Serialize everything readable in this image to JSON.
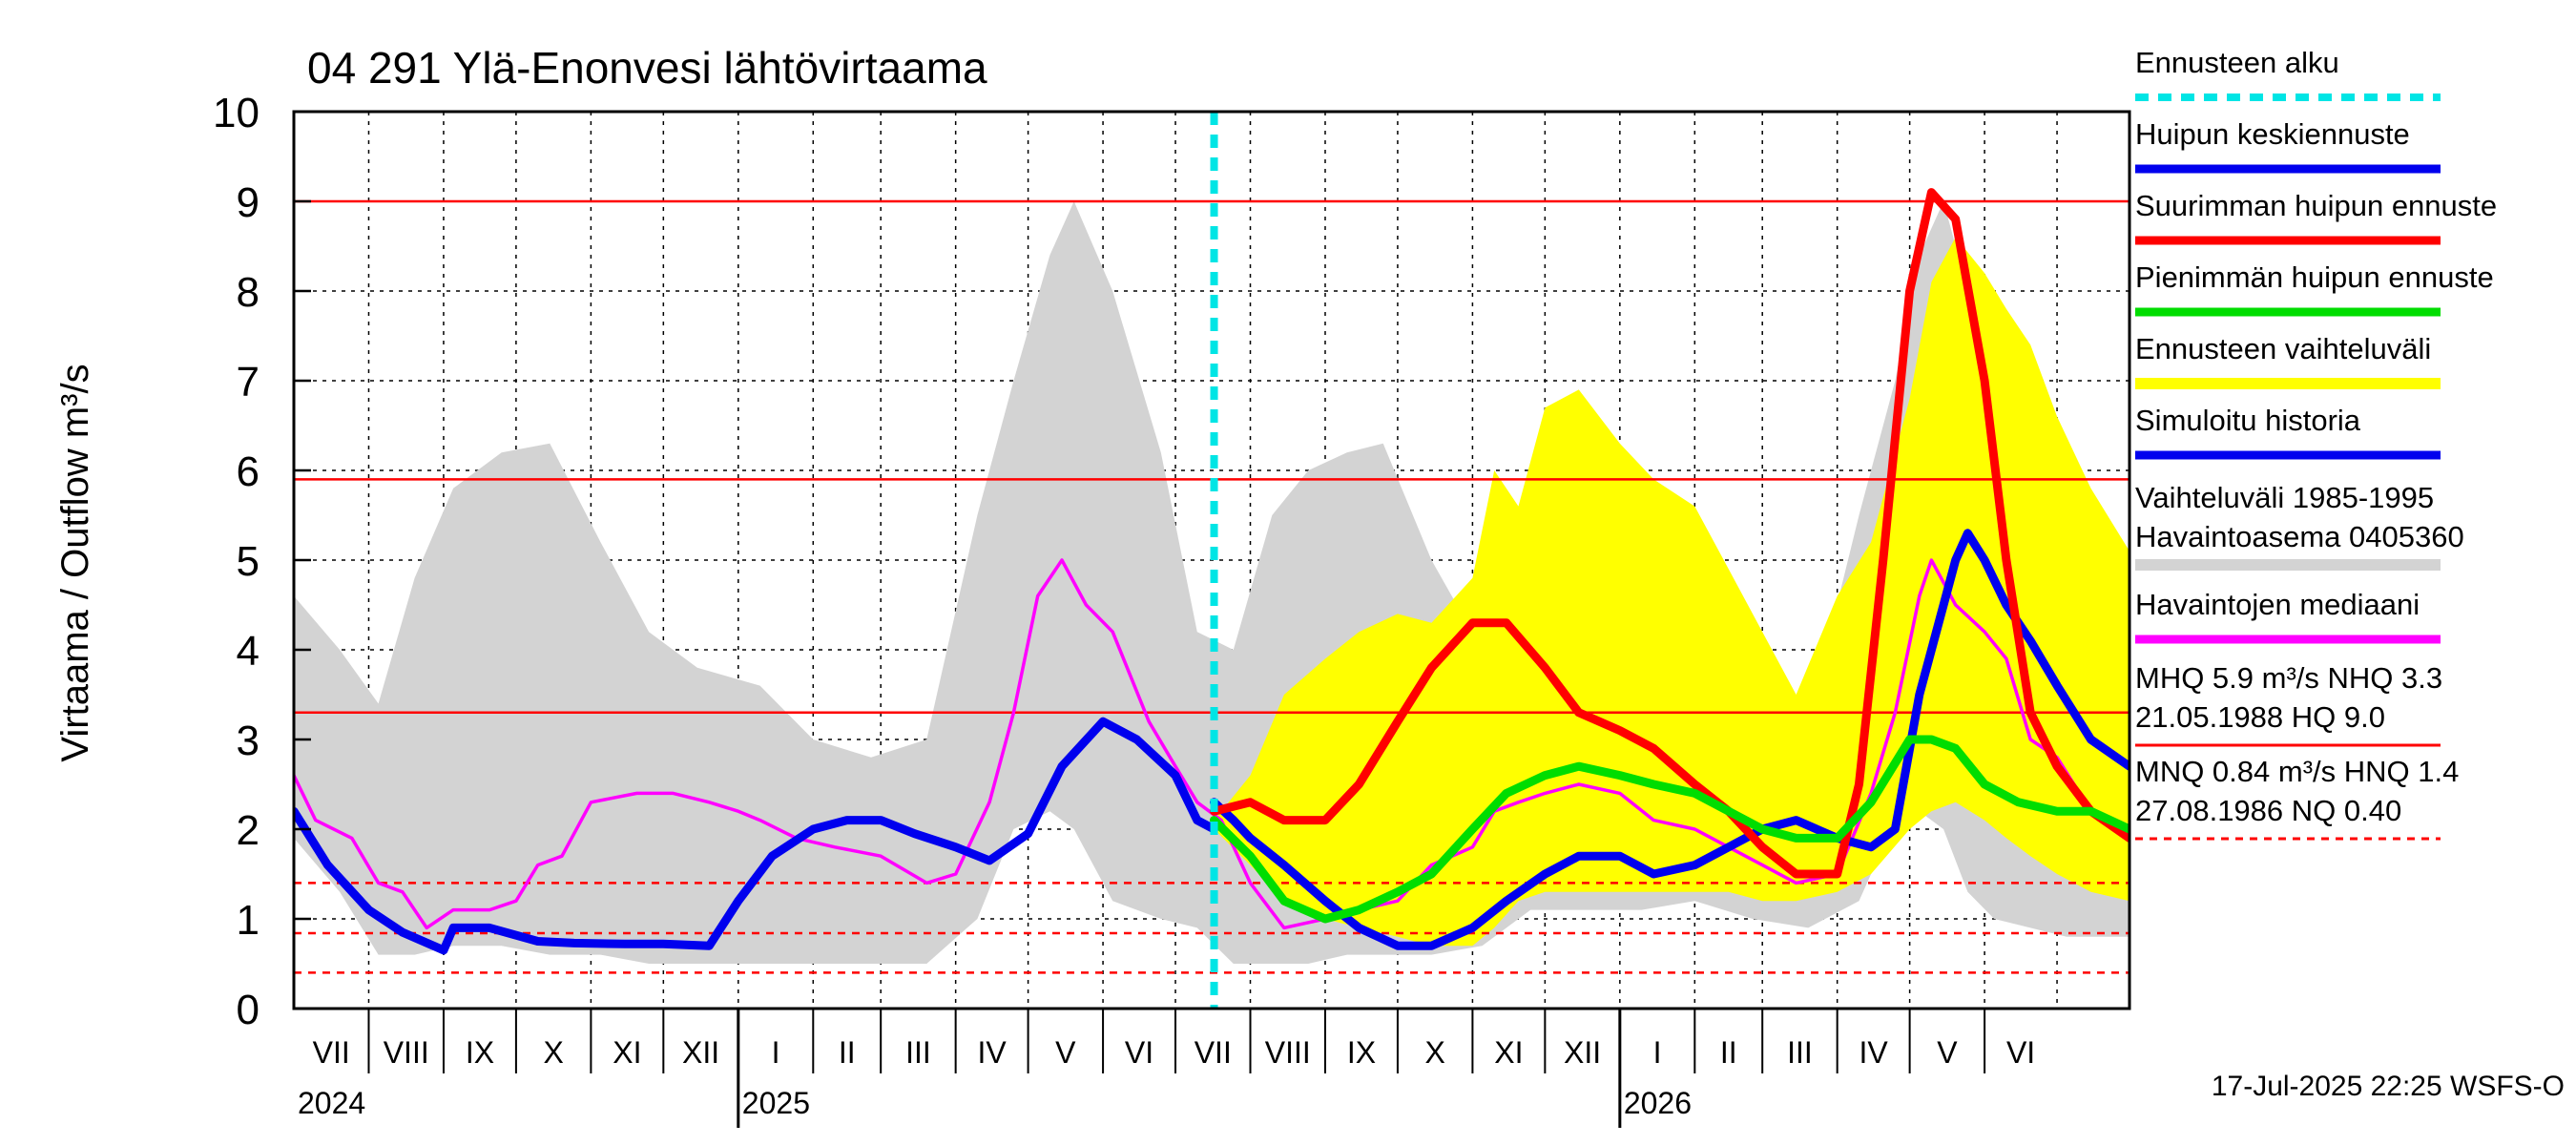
{
  "chart_data": {
    "type": "line",
    "title": "04 291 Ylä-Enonvesi lähtövirtaama",
    "ylabel": "Virtaama / Outflow    m³/s",
    "ylim": [
      0,
      10
    ],
    "y_ticks": [
      "0",
      "1",
      "2",
      "3",
      "4",
      "5",
      "6",
      "7",
      "8",
      "9",
      "10"
    ],
    "x_range": [
      "2024-07-01",
      "2026-07-31"
    ],
    "grid": true,
    "legend_position": "right",
    "month_labels": [
      "VII",
      "VIII",
      "IX",
      "X",
      "XI",
      "XII",
      "I",
      "II",
      "III",
      "IV",
      "V",
      "VI",
      "VII",
      "VIII",
      "IX",
      "X",
      "XI",
      "XII",
      "I",
      "II",
      "III",
      "IV",
      "V",
      "VI"
    ],
    "year_labels": [
      {
        "date": "2024-07-01",
        "label": "2024"
      },
      {
        "date": "2025-01-01",
        "label": "2025"
      },
      {
        "date": "2026-01-01",
        "label": "2026"
      }
    ],
    "forecast_start": "2025-07-17",
    "reference_lines": [
      {
        "name": "HQ",
        "value": 9.0,
        "style": "solid"
      },
      {
        "name": "MHQ",
        "value": 5.9,
        "style": "solid"
      },
      {
        "name": "NHQ",
        "value": 3.3,
        "style": "solid"
      },
      {
        "name": "HNQ",
        "value": 1.4,
        "style": "dashed"
      },
      {
        "name": "MNQ",
        "value": 0.84,
        "style": "dashed"
      },
      {
        "name": "NQ",
        "value": 0.4,
        "style": "dashed"
      }
    ],
    "hist_band": {
      "x": [
        "2024-07-01",
        "2024-07-20",
        "2024-08-05",
        "2024-08-20",
        "2024-09-05",
        "2024-09-25",
        "2024-10-15",
        "2024-11-05",
        "2024-11-25",
        "2024-12-15",
        "2025-01-10",
        "2025-02-01",
        "2025-02-25",
        "2025-03-20",
        "2025-04-10",
        "2025-04-25",
        "2025-05-10",
        "2025-05-20",
        "2025-06-05",
        "2025-06-25",
        "2025-07-10",
        "2025-07-25",
        "2025-08-10",
        "2025-08-25",
        "2025-09-10",
        "2025-09-25",
        "2025-10-15",
        "2025-11-05",
        "2025-11-25",
        "2025-12-15",
        "2026-01-10",
        "2026-02-01",
        "2026-02-25",
        "2026-03-20",
        "2026-04-10",
        "2026-04-25",
        "2026-05-05",
        "2026-05-15",
        "2026-05-25",
        "2026-06-05",
        "2026-06-20",
        "2026-07-05",
        "2026-07-31"
      ],
      "upper": [
        4.6,
        4.0,
        3.4,
        4.8,
        5.8,
        6.2,
        6.3,
        5.2,
        4.2,
        3.8,
        3.6,
        3.0,
        2.8,
        3.0,
        5.5,
        7.0,
        8.4,
        9.0,
        8.0,
        6.2,
        4.2,
        4.0,
        5.5,
        6.0,
        6.2,
        6.3,
        5.0,
        4.0,
        3.9,
        3.5,
        3.4,
        3.0,
        2.8,
        3.2,
        5.5,
        7.0,
        8.4,
        9.0,
        8.0,
        6.2,
        4.2,
        4.0,
        4.3
      ],
      "lower": [
        1.9,
        1.3,
        0.6,
        0.6,
        0.7,
        0.7,
        0.6,
        0.6,
        0.5,
        0.5,
        0.5,
        0.5,
        0.5,
        0.5,
        1.0,
        2.0,
        2.2,
        2.0,
        1.2,
        1.0,
        0.9,
        0.5,
        0.5,
        0.5,
        0.6,
        0.6,
        0.6,
        0.7,
        1.1,
        1.1,
        1.1,
        1.2,
        1.0,
        0.9,
        1.2,
        2.1,
        2.2,
        2.0,
        1.3,
        1.0,
        0.9,
        0.8,
        0.8
      ]
    },
    "forecast_band": {
      "x": [
        "2025-07-17",
        "2025-08-01",
        "2025-08-15",
        "2025-09-01",
        "2025-09-15",
        "2025-10-01",
        "2025-10-15",
        "2025-11-01",
        "2025-11-10",
        "2025-11-20",
        "2025-12-01",
        "2025-12-15",
        "2026-01-01",
        "2026-01-15",
        "2026-02-01",
        "2026-02-15",
        "2026-03-01",
        "2026-03-15",
        "2026-04-01",
        "2026-04-15",
        "2026-05-01",
        "2026-05-10",
        "2026-05-20",
        "2026-06-01",
        "2026-06-10",
        "2026-06-20",
        "2026-07-01",
        "2026-07-15",
        "2026-07-31"
      ],
      "upper": [
        2.1,
        2.6,
        3.5,
        3.9,
        4.2,
        4.4,
        4.3,
        4.8,
        6.0,
        5.6,
        6.7,
        6.9,
        6.3,
        5.9,
        5.6,
        4.9,
        4.2,
        3.5,
        4.6,
        5.2,
        6.8,
        8.1,
        8.6,
        8.2,
        7.8,
        7.4,
        6.6,
        5.8,
        5.1
      ],
      "lower": [
        2.0,
        1.6,
        1.2,
        1.0,
        0.9,
        0.8,
        0.7,
        0.7,
        0.9,
        1.2,
        1.3,
        1.3,
        1.3,
        1.3,
        1.3,
        1.3,
        1.2,
        1.2,
        1.3,
        1.5,
        2.0,
        2.2,
        2.3,
        2.1,
        1.9,
        1.7,
        1.5,
        1.3,
        1.2
      ]
    },
    "series": [
      {
        "name": "Havaintojen mediaani",
        "color": "#ff00ff",
        "x": [
          "2024-07-01",
          "2024-07-10",
          "2024-07-25",
          "2024-08-05",
          "2024-08-15",
          "2024-08-25",
          "2024-09-05",
          "2024-09-20",
          "2024-10-01",
          "2024-10-10",
          "2024-10-20",
          "2024-11-01",
          "2024-11-20",
          "2024-12-05",
          "2024-12-20",
          "2025-01-01",
          "2025-01-10",
          "2025-01-25",
          "2025-02-10",
          "2025-03-01",
          "2025-03-20",
          "2025-04-01",
          "2025-04-15",
          "2025-04-25",
          "2025-05-05",
          "2025-05-15",
          "2025-05-25",
          "2025-06-05",
          "2025-06-20",
          "2025-07-01",
          "2025-07-10",
          "2025-07-20",
          "2025-08-01",
          "2025-08-15",
          "2025-09-01",
          "2025-09-15",
          "2025-10-01",
          "2025-10-15",
          "2025-11-01",
          "2025-11-10",
          "2025-11-20",
          "2025-12-01",
          "2025-12-15",
          "2026-01-01",
          "2026-01-15",
          "2026-02-01",
          "2026-02-15",
          "2026-03-01",
          "2026-03-15",
          "2026-04-01",
          "2026-04-15",
          "2026-04-25",
          "2026-05-05",
          "2026-05-10",
          "2026-05-20",
          "2026-06-01",
          "2026-06-10",
          "2026-06-20",
          "2026-07-01",
          "2026-07-15",
          "2026-07-31"
        ],
        "y": [
          2.6,
          2.1,
          1.9,
          1.4,
          1.3,
          0.9,
          1.1,
          1.1,
          1.2,
          1.6,
          1.7,
          2.3,
          2.4,
          2.4,
          2.3,
          2.2,
          2.1,
          1.9,
          1.8,
          1.7,
          1.4,
          1.5,
          2.3,
          3.3,
          4.6,
          5.0,
          4.5,
          4.2,
          3.2,
          2.7,
          2.3,
          2.1,
          1.4,
          0.9,
          1.0,
          1.1,
          1.2,
          1.6,
          1.8,
          2.2,
          2.3,
          2.4,
          2.5,
          2.4,
          2.1,
          2.0,
          1.8,
          1.6,
          1.4,
          1.5,
          2.4,
          3.3,
          4.6,
          5.0,
          4.5,
          4.2,
          3.9,
          3.0,
          2.8,
          2.2,
          1.9
        ]
      },
      {
        "name": "Simuloitu historia",
        "color": "#0000ee",
        "x": [
          "2024-07-01",
          "2024-07-15",
          "2024-08-01",
          "2024-08-15",
          "2024-09-01",
          "2024-09-05",
          "2024-09-20",
          "2024-10-10",
          "2024-10-25",
          "2024-11-15",
          "2024-12-01",
          "2024-12-20",
          "2025-01-01",
          "2025-01-15",
          "2025-02-01",
          "2025-02-15",
          "2025-03-01",
          "2025-03-15",
          "2025-04-01",
          "2025-04-15",
          "2025-05-01",
          "2025-05-15",
          "2025-06-01",
          "2025-06-15",
          "2025-07-01",
          "2025-07-10",
          "2025-07-17"
        ],
        "y": [
          2.2,
          1.6,
          1.1,
          0.85,
          0.65,
          0.9,
          0.9,
          0.75,
          0.73,
          0.72,
          0.72,
          0.7,
          1.2,
          1.7,
          2.0,
          2.1,
          2.1,
          1.95,
          1.8,
          1.65,
          1.95,
          2.7,
          3.2,
          3.0,
          2.6,
          2.1,
          2.0
        ]
      },
      {
        "name": "Huipun keskiennuste",
        "color": "#0000ee",
        "x": [
          "2025-07-17",
          "2025-07-25",
          "2025-08-01",
          "2025-08-15",
          "2025-09-01",
          "2025-09-15",
          "2025-10-01",
          "2025-10-15",
          "2025-11-01",
          "2025-11-15",
          "2025-12-01",
          "2025-12-15",
          "2026-01-01",
          "2026-01-15",
          "2026-02-01",
          "2026-02-15",
          "2026-03-01",
          "2026-03-15",
          "2026-04-01",
          "2026-04-15",
          "2026-04-25",
          "2026-05-05",
          "2026-05-15",
          "2026-05-20",
          "2026-05-25",
          "2026-06-01",
          "2026-06-10",
          "2026-06-20",
          "2026-07-01",
          "2026-07-15",
          "2026-07-31"
        ],
        "y": [
          2.3,
          2.1,
          1.9,
          1.6,
          1.2,
          0.9,
          0.7,
          0.7,
          0.9,
          1.2,
          1.5,
          1.7,
          1.7,
          1.5,
          1.6,
          1.8,
          2.0,
          2.1,
          1.9,
          1.8,
          2.0,
          3.5,
          4.5,
          5.0,
          5.3,
          5.0,
          4.5,
          4.1,
          3.6,
          3.0,
          2.7
        ]
      },
      {
        "name": "Suurimman huipun ennuste",
        "color": "#ff0000",
        "x": [
          "2025-07-17",
          "2025-08-01",
          "2025-08-15",
          "2025-09-01",
          "2025-09-15",
          "2025-10-01",
          "2025-10-15",
          "2025-11-01",
          "2025-11-15",
          "2025-12-01",
          "2025-12-15",
          "2026-01-01",
          "2026-01-15",
          "2026-02-01",
          "2026-02-15",
          "2026-03-01",
          "2026-03-15",
          "2026-04-01",
          "2026-04-10",
          "2026-04-20",
          "2026-05-01",
          "2026-05-10",
          "2026-05-20",
          "2026-06-01",
          "2026-06-10",
          "2026-06-20",
          "2026-07-01",
          "2026-07-15",
          "2026-07-31"
        ],
        "y": [
          2.2,
          2.3,
          2.1,
          2.1,
          2.5,
          3.2,
          3.8,
          4.3,
          4.3,
          3.8,
          3.3,
          3.1,
          2.9,
          2.5,
          2.2,
          1.8,
          1.5,
          1.5,
          2.5,
          5.0,
          8.0,
          9.1,
          8.8,
          7.0,
          5.0,
          3.3,
          2.7,
          2.2,
          1.9
        ]
      },
      {
        "name": "Pienimmän huipun ennuste",
        "color": "#00dd00",
        "x": [
          "2025-07-17",
          "2025-08-01",
          "2025-08-15",
          "2025-09-01",
          "2025-09-15",
          "2025-10-01",
          "2025-10-15",
          "2025-11-01",
          "2025-11-15",
          "2025-12-01",
          "2025-12-15",
          "2026-01-01",
          "2026-01-15",
          "2026-02-01",
          "2026-02-15",
          "2026-03-01",
          "2026-03-15",
          "2026-04-01",
          "2026-04-15",
          "2026-05-01",
          "2026-05-10",
          "2026-05-20",
          "2026-06-01",
          "2026-06-15",
          "2026-07-01",
          "2026-07-15",
          "2026-07-31"
        ],
        "y": [
          2.1,
          1.7,
          1.2,
          1.0,
          1.1,
          1.3,
          1.5,
          2.0,
          2.4,
          2.6,
          2.7,
          2.6,
          2.5,
          2.4,
          2.2,
          2.0,
          1.9,
          1.9,
          2.3,
          3.0,
          3.0,
          2.9,
          2.5,
          2.3,
          2.2,
          2.2,
          2.0
        ]
      }
    ],
    "legend": [
      {
        "label": "Ennusteen alku",
        "color": "#00e5e5",
        "style": "dotted"
      },
      {
        "label": "Huipun keskiennuste",
        "color": "#0000ee",
        "style": "solid"
      },
      {
        "label": "Suurimman huipun ennuste",
        "color": "#ff0000",
        "style": "solid"
      },
      {
        "label": "Pienimmän huipun ennuste",
        "color": "#00dd00",
        "style": "solid"
      },
      {
        "label": "Ennusteen vaihteluväli",
        "color": "#ffff00",
        "style": "band"
      },
      {
        "label": "Simuloitu historia",
        "color": "#0000ee",
        "style": "solid"
      },
      {
        "label": "Vaihteluväli 1985-1995",
        "label2": " Havaintoasema 0405360",
        "color": "#d3d3d3",
        "style": "band"
      },
      {
        "label": "Havaintojen mediaani",
        "color": "#ff00ff",
        "style": "solid"
      },
      {
        "label": "MHQ  5.9 m³/s NHQ  3.3",
        "label2": "21.05.1988 HQ  9.0",
        "color": "#ff0000",
        "style": "solid"
      },
      {
        "label": "MNQ 0.84 m³/s HNQ  1.4",
        "label2": "27.08.1986 NQ 0.40",
        "color": "#ff0000",
        "style": "dashed"
      }
    ],
    "footer": "17-Jul-2025 22:25 WSFS-O"
  }
}
